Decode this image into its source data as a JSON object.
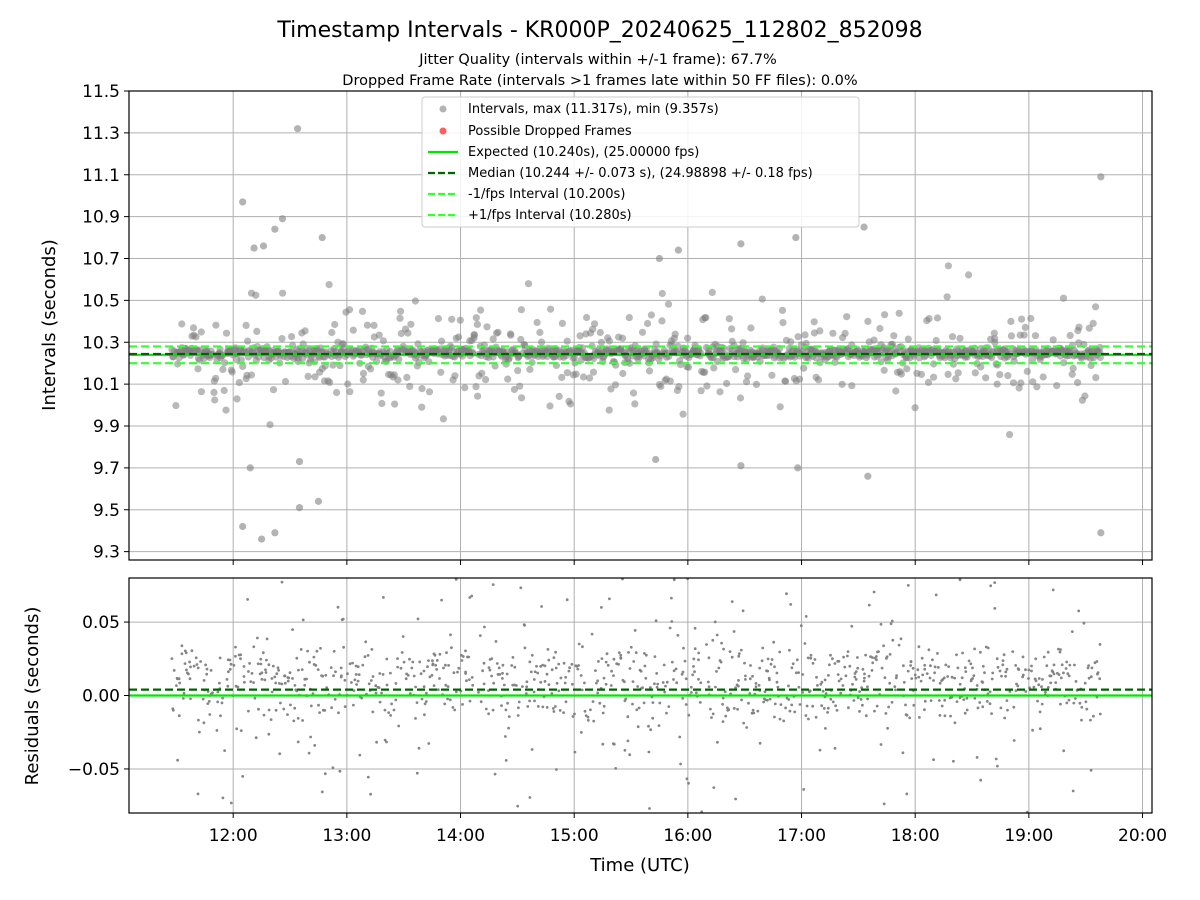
{
  "chart_data": [
    {
      "type": "scatter",
      "panel": "top",
      "title": "Timestamp Intervals - KR000P_20240625_112802_852098",
      "subtitle_lines": [
        "Jitter Quality (intervals within +/-1 frame): 67.7%",
        "Dropped Frame Rate (intervals >1 frames late within 50 FF files): 0.0%"
      ],
      "ylabel": "Intervals (seconds)",
      "ylim": [
        9.26,
        11.5
      ],
      "xlim": [
        "11:05",
        "20:05"
      ],
      "yticks": [
        "9.3",
        "9.5",
        "9.7",
        "9.9",
        "10.1",
        "10.3",
        "10.5",
        "10.7",
        "10.9",
        "11.1",
        "11.3",
        "11.5"
      ],
      "grid": true,
      "legend_position": "top-center",
      "legend": [
        "Intervals, max (11.317s), min (9.357s)",
        "Possible Dropped Frames",
        "Expected (10.240s), (25.00000 fps)",
        "Median (10.244 +/- 0.073 s), (24.98898 +/- 0.18 fps)",
        "-1/fps Interval (10.200s)",
        "+1/fps Interval (10.280s)"
      ],
      "lines": {
        "expected": 10.24,
        "median": 10.244,
        "minus_one_fps": 10.2,
        "plus_one_fps": 10.28
      },
      "data_range": {
        "start": "11:28",
        "end": "19:38"
      },
      "interval_stats": {
        "max": 11.317,
        "min": 9.357,
        "median": 10.244,
        "std": 0.073
      },
      "outliers": [
        {
          "x": "12:05",
          "y": 10.97
        },
        {
          "x": "12:34",
          "y": 11.32
        },
        {
          "x": "19:38",
          "y": 11.09
        },
        {
          "x": "12:05",
          "y": 9.42
        },
        {
          "x": "12:15",
          "y": 9.36
        },
        {
          "x": "12:22",
          "y": 9.39
        },
        {
          "x": "12:35",
          "y": 9.51
        },
        {
          "x": "12:45",
          "y": 9.54
        },
        {
          "x": "19:38",
          "y": 9.39
        },
        {
          "x": "17:35",
          "y": 9.66
        },
        {
          "x": "15:43",
          "y": 9.74
        },
        {
          "x": "16:28",
          "y": 9.71
        },
        {
          "x": "16:58",
          "y": 9.7
        },
        {
          "x": "12:09",
          "y": 9.7
        },
        {
          "x": "12:35",
          "y": 9.73
        },
        {
          "x": "12:11",
          "y": 10.75
        },
        {
          "x": "12:16",
          "y": 10.76
        },
        {
          "x": "12:26",
          "y": 10.89
        },
        {
          "x": "12:47",
          "y": 10.8
        },
        {
          "x": "12:22",
          "y": 10.84
        },
        {
          "x": "15:55",
          "y": 10.74
        },
        {
          "x": "16:57",
          "y": 10.8
        },
        {
          "x": "17:33",
          "y": 10.85
        },
        {
          "x": "16:28",
          "y": 10.77
        },
        {
          "x": "15:45",
          "y": 10.7
        }
      ]
    },
    {
      "type": "scatter",
      "panel": "bottom",
      "xlabel": "Time (UTC)",
      "ylabel": "Residuals (seconds)",
      "ylim": [
        -0.08,
        0.08
      ],
      "yticks": [
        "−0.05",
        "0.00",
        "0.05"
      ],
      "xticks": [
        "12:00",
        "13:00",
        "14:00",
        "15:00",
        "16:00",
        "17:00",
        "18:00",
        "19:00",
        "20:00"
      ],
      "grid": true,
      "lines": {
        "zero": 0.0,
        "median_offset": 0.004
      }
    }
  ],
  "colors": {
    "points": "#808080",
    "expected": "#00e600",
    "median": "#006400",
    "fps_bounds": "#33ff33",
    "dropped": "#ff4d4d",
    "grid": "#b0b0b0"
  }
}
